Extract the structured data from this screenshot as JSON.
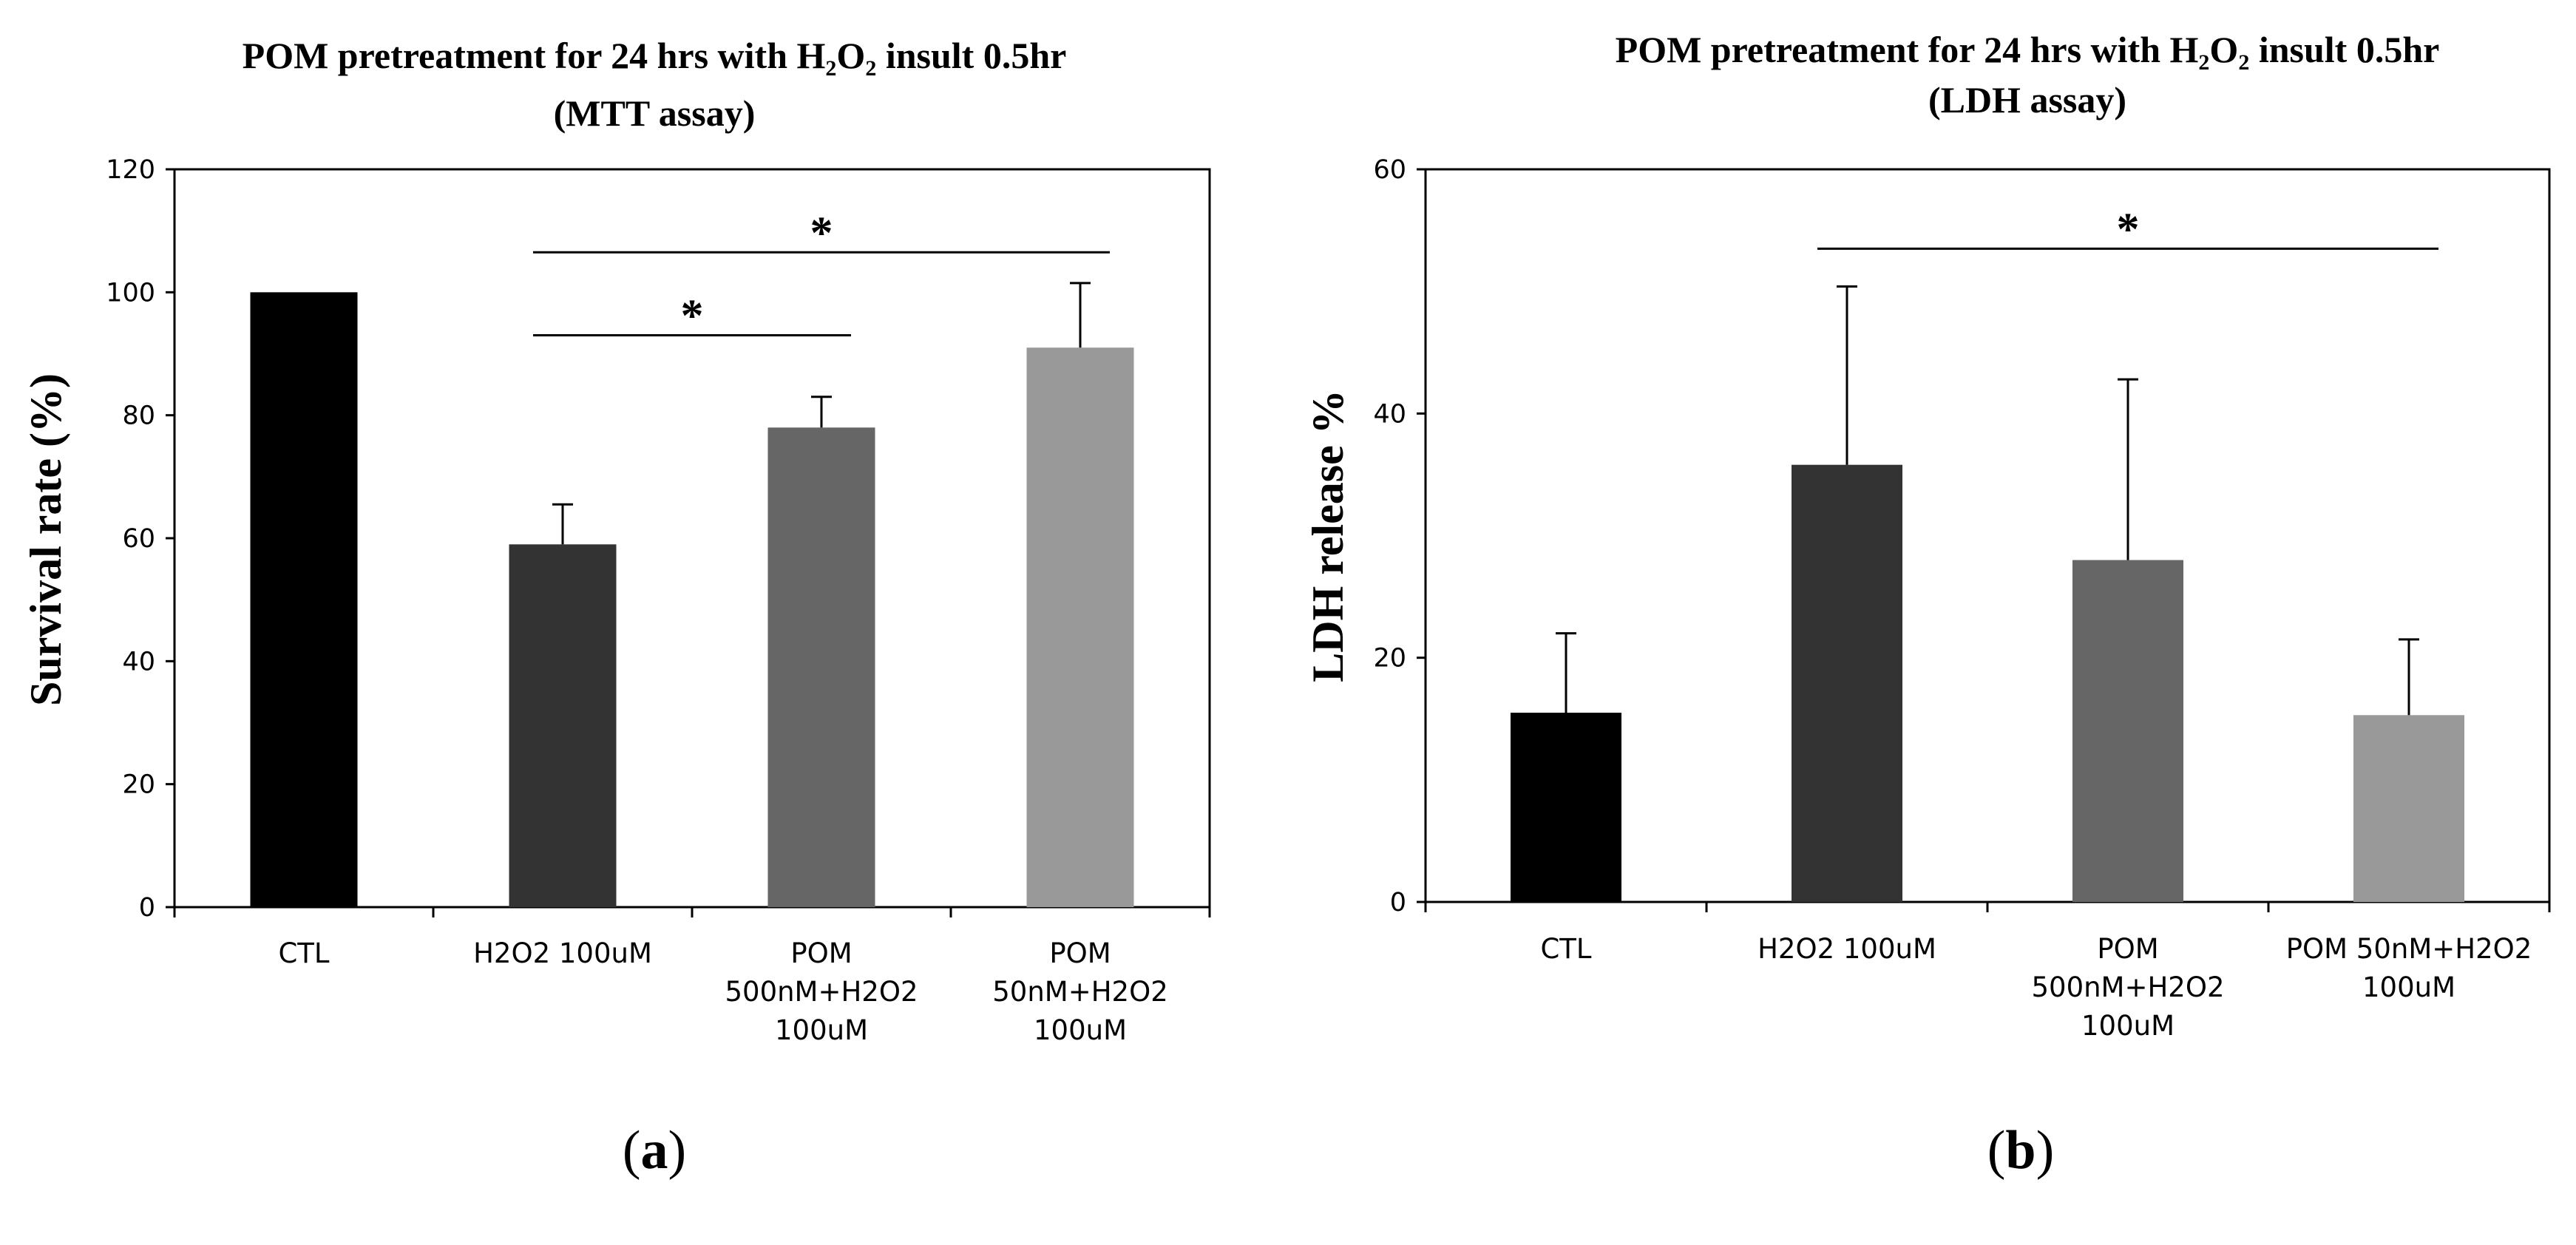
{
  "chart_data": [
    {
      "type": "bar",
      "panel_label": "(a)",
      "panel_letter": "a",
      "title_line1": {
        "prefix": "POM pretreatment  for 24 hrs with H",
        "sub1": "2",
        "mid": "O",
        "sub2": "2",
        "suffix": " insult 0.5hr"
      },
      "title_line2": "(MTT assay)",
      "ylabel": "Survival  rate (%)",
      "xlabel": "",
      "ylim": [
        0,
        120
      ],
      "yticks": [
        0,
        20,
        40,
        60,
        80,
        100,
        120
      ],
      "categories": [
        [
          "CTL"
        ],
        [
          "H2O2 100uM"
        ],
        [
          "POM",
          "500nM+H2O2",
          "100uM"
        ],
        [
          "POM",
          "50nM+H2O2",
          "100uM"
        ]
      ],
      "values": [
        100,
        59,
        78,
        91
      ],
      "errors": [
        0,
        6.5,
        5,
        10.5
      ],
      "colors": [
        "#000000",
        "#333333",
        "#666666",
        "#999999"
      ],
      "significance": [
        {
          "from": 1,
          "to": 2,
          "label": "*",
          "y": 93
        },
        {
          "from": 1,
          "to": 3,
          "label": "*",
          "y": 106.5
        }
      ]
    },
    {
      "type": "bar",
      "panel_label": "(b)",
      "panel_letter": "b",
      "title_line1": {
        "prefix": "POM pretreatment for 24 hrs with H",
        "sub1": "2",
        "mid": "O",
        "sub2": "2",
        "suffix": " insult 0.5hr"
      },
      "title_line2": "(LDH assay)",
      "ylabel": "LDH release %",
      "xlabel": "",
      "ylim": [
        0,
        60
      ],
      "yticks": [
        0,
        20,
        40,
        60
      ],
      "categories": [
        [
          "CTL"
        ],
        [
          "H2O2 100uM"
        ],
        [
          "POM",
          "500nM+H2O2",
          "100uM"
        ],
        [
          "POM 50nM+H2O2",
          "100uM"
        ]
      ],
      "values": [
        15.5,
        35.8,
        28,
        15.3
      ],
      "errors": [
        6.5,
        14.6,
        14.8,
        6.2
      ],
      "colors": [
        "#000000",
        "#333333",
        "#666666",
        "#999999"
      ],
      "significance": [
        {
          "from": 1,
          "to": 3,
          "label": "*",
          "y": 53.5
        }
      ]
    }
  ]
}
